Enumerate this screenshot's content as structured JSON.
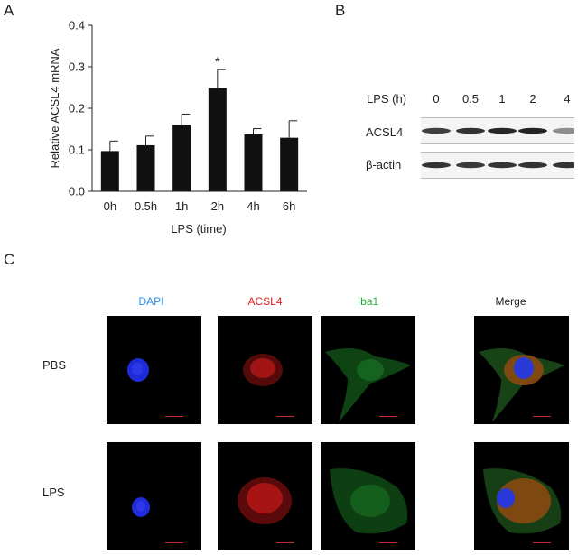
{
  "panels": {
    "a": "A",
    "b": "B",
    "c": "C"
  },
  "chart_data": {
    "type": "bar",
    "categories": [
      "0h",
      "0.5h",
      "1h",
      "2h",
      "4h",
      "6h"
    ],
    "values": [
      0.097,
      0.111,
      0.16,
      0.249,
      0.137,
      0.129
    ],
    "errors": [
      0.024,
      0.022,
      0.026,
      0.044,
      0.014,
      0.041
    ],
    "annotations": [
      "",
      "",
      "",
      "*",
      "",
      ""
    ],
    "ylabel": "Relative ACSL4 mRNA",
    "xlabel": "LPS (time)",
    "ylim": [
      0,
      0.4
    ],
    "yticks": [
      "0.0",
      "0.1",
      "0.2",
      "0.3",
      "0.4"
    ],
    "yticks_values": [
      0,
      0.1,
      0.2,
      0.3,
      0.4
    ],
    "bar_color": "#111111"
  },
  "western_blot": {
    "header_label": "LPS (h)",
    "lanes": [
      "0",
      "0.5",
      "1",
      "2",
      "4"
    ],
    "rows": [
      {
        "label": "ACSL4",
        "intensities": [
          0.8,
          0.85,
          0.9,
          0.92,
          0.45
        ]
      },
      {
        "label": "β-actin",
        "intensities": [
          0.85,
          0.82,
          0.85,
          0.85,
          0.85
        ]
      }
    ]
  },
  "microscopy": {
    "columns": [
      {
        "label": "DAPI",
        "color": "#2a8ee8"
      },
      {
        "label": "ACSL4",
        "color": "#e02020"
      },
      {
        "label": "Iba1",
        "color": "#2aa83a"
      },
      {
        "label": "Merge",
        "color": "#222222"
      }
    ],
    "rows": [
      "PBS",
      "LPS"
    ],
    "scale_bar_color": "#c0282b"
  }
}
